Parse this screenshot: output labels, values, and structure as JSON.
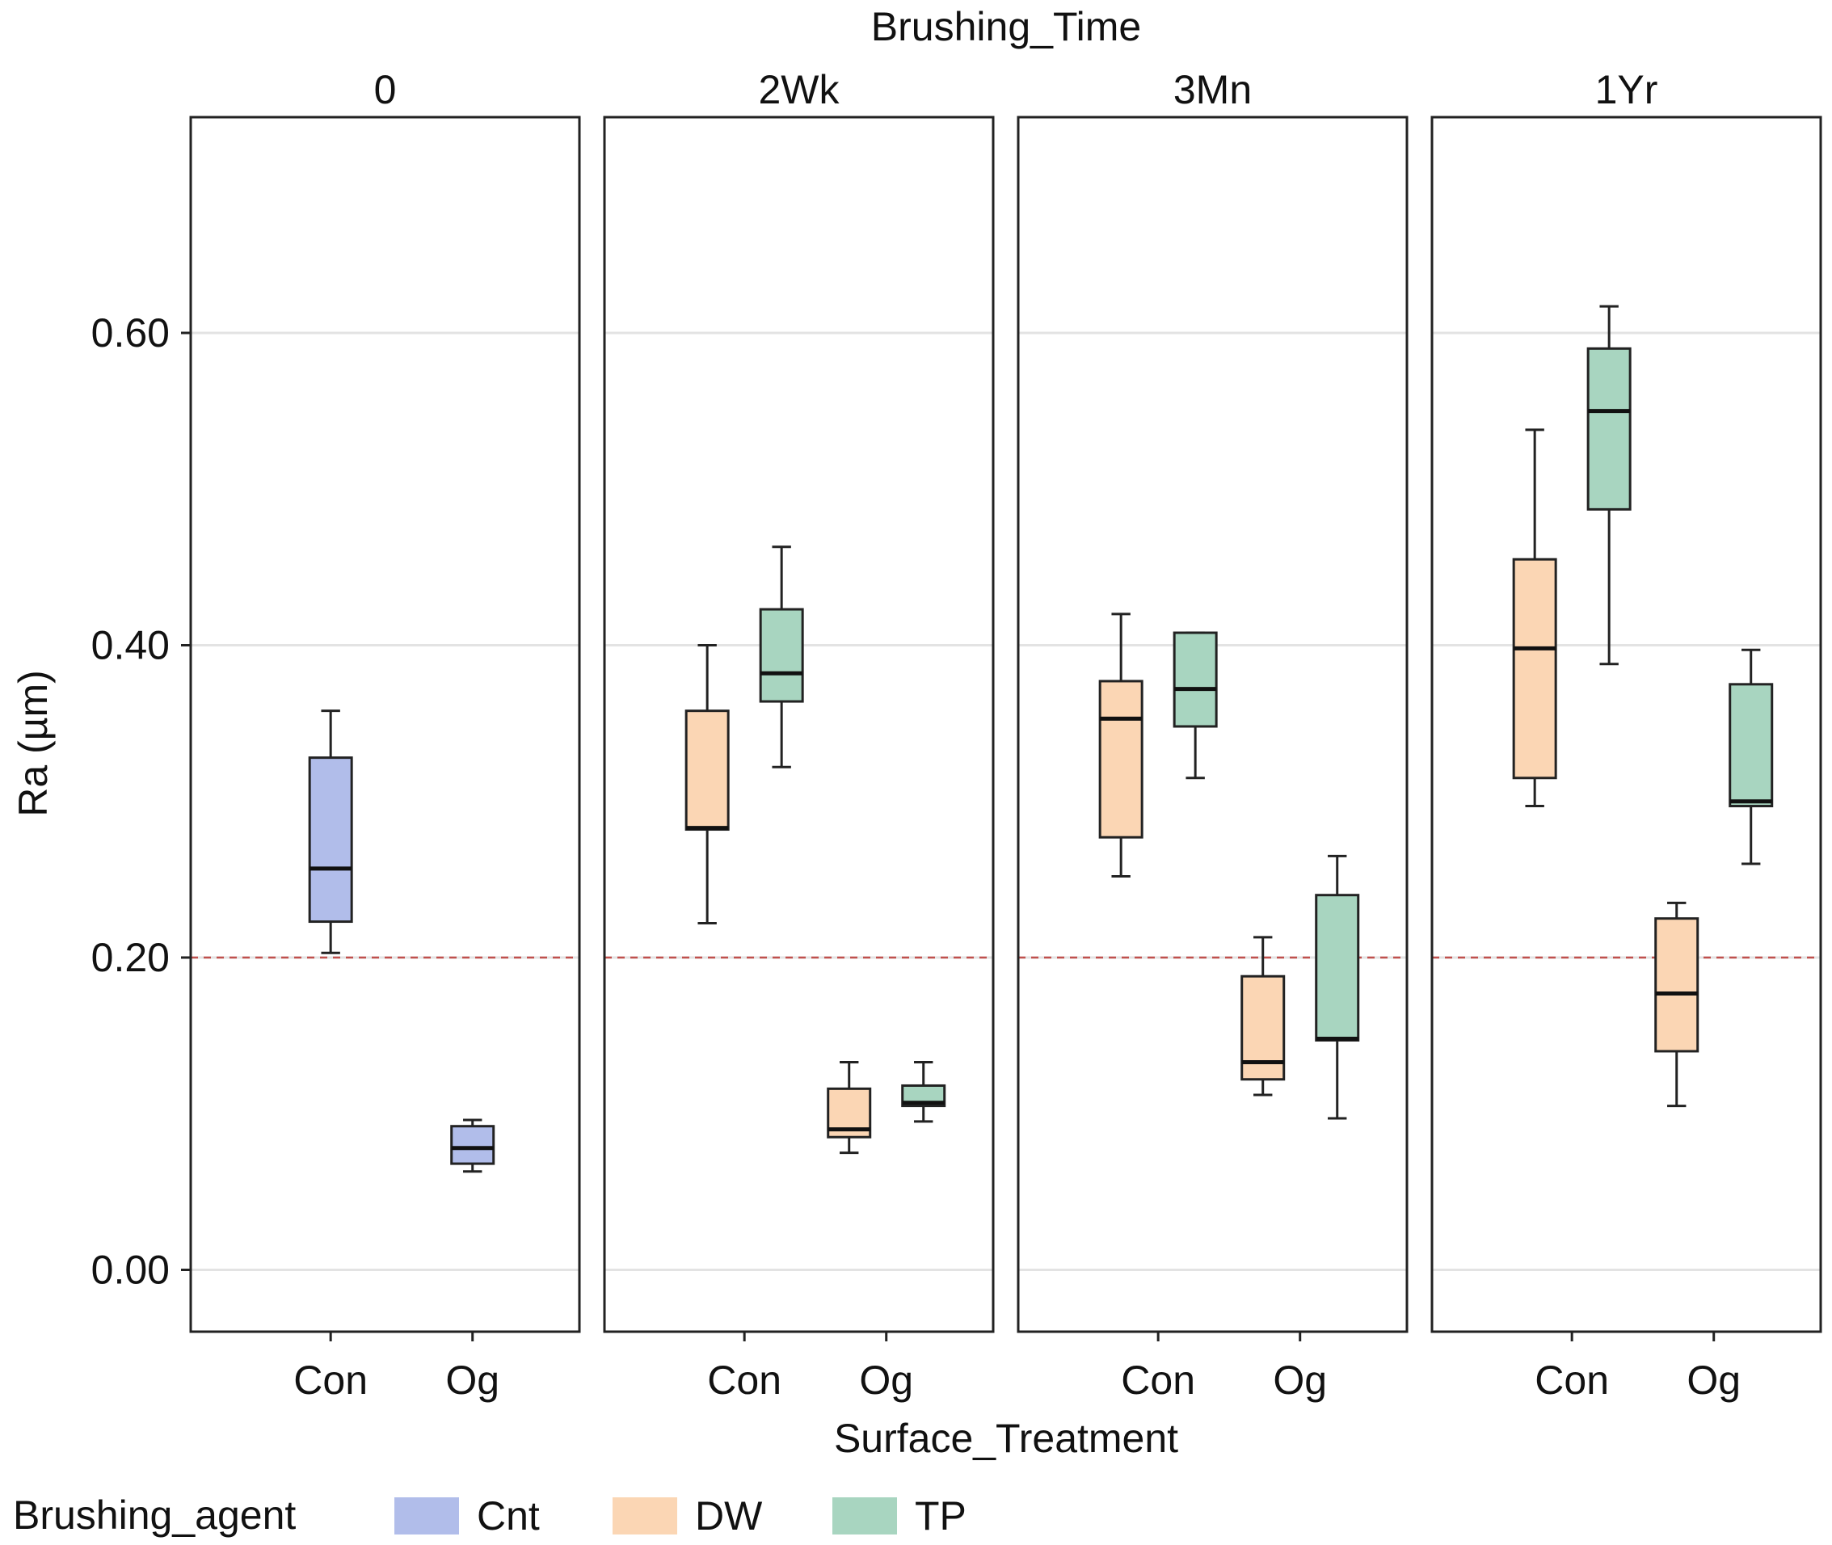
{
  "chart_data": {
    "type": "boxplot",
    "title": "Brushing_Time",
    "xlabel": "Surface_Treatment",
    "ylabel": "Ra (µm)",
    "ylim": [
      -0.04,
      0.76
    ],
    "yticks": [
      0.0,
      0.2,
      0.4,
      0.6
    ],
    "ytick_labels": [
      "0.00",
      "0.20",
      "0.40",
      "0.60"
    ],
    "grid": true,
    "reference_line": {
      "y": 0.2,
      "style": "dashed",
      "color": "#c0504d"
    },
    "categories": [
      "Con",
      "Og"
    ],
    "panels": [
      {
        "label": "0",
        "boxes": [
          {
            "category": "Con",
            "agent": "Cnt",
            "min": 0.203,
            "q1": 0.223,
            "median": 0.257,
            "q3": 0.328,
            "max": 0.358
          },
          {
            "category": "Og",
            "agent": "Cnt",
            "min": 0.063,
            "q1": 0.068,
            "median": 0.078,
            "q3": 0.092,
            "max": 0.096
          }
        ]
      },
      {
        "label": "2Wk",
        "boxes": [
          {
            "category": "Con",
            "agent": "DW",
            "min": 0.222,
            "q1": 0.282,
            "median": 0.283,
            "q3": 0.358,
            "max": 0.4
          },
          {
            "category": "Con",
            "agent": "TP",
            "min": 0.322,
            "q1": 0.364,
            "median": 0.382,
            "q3": 0.423,
            "max": 0.463
          },
          {
            "category": "Og",
            "agent": "DW",
            "min": 0.075,
            "q1": 0.085,
            "median": 0.09,
            "q3": 0.116,
            "max": 0.133
          },
          {
            "category": "Og",
            "agent": "TP",
            "min": 0.095,
            "q1": 0.105,
            "median": 0.107,
            "q3": 0.118,
            "max": 0.133
          }
        ]
      },
      {
        "label": "3Mn",
        "boxes": [
          {
            "category": "Con",
            "agent": "DW",
            "min": 0.252,
            "q1": 0.277,
            "median": 0.353,
            "q3": 0.377,
            "max": 0.42
          },
          {
            "category": "Con",
            "agent": "TP",
            "min": 0.315,
            "q1": 0.348,
            "median": 0.372,
            "q3": 0.408,
            "max": 0.408
          },
          {
            "category": "Og",
            "agent": "DW",
            "min": 0.112,
            "q1": 0.122,
            "median": 0.133,
            "q3": 0.188,
            "max": 0.213
          },
          {
            "category": "Og",
            "agent": "TP",
            "min": 0.097,
            "q1": 0.147,
            "median": 0.148,
            "q3": 0.24,
            "max": 0.265
          }
        ]
      },
      {
        "label": "1Yr",
        "boxes": [
          {
            "category": "Con",
            "agent": "DW",
            "min": 0.297,
            "q1": 0.315,
            "median": 0.398,
            "q3": 0.455,
            "max": 0.538
          },
          {
            "category": "Con",
            "agent": "TP",
            "min": 0.388,
            "q1": 0.487,
            "median": 0.55,
            "q3": 0.59,
            "max": 0.617
          },
          {
            "category": "Og",
            "agent": "DW",
            "min": 0.105,
            "q1": 0.14,
            "median": 0.177,
            "q3": 0.225,
            "max": 0.235
          },
          {
            "category": "Og",
            "agent": "TP",
            "min": 0.26,
            "q1": 0.297,
            "median": 0.3,
            "q3": 0.375,
            "max": 0.397
          }
        ]
      }
    ],
    "legend": {
      "title": "Brushing_agent",
      "position": "bottom",
      "items": [
        {
          "label": "Cnt",
          "color": "#b1bdea"
        },
        {
          "label": "DW",
          "color": "#fbd6b4"
        },
        {
          "label": "TP",
          "color": "#a8d5c0"
        }
      ]
    }
  }
}
